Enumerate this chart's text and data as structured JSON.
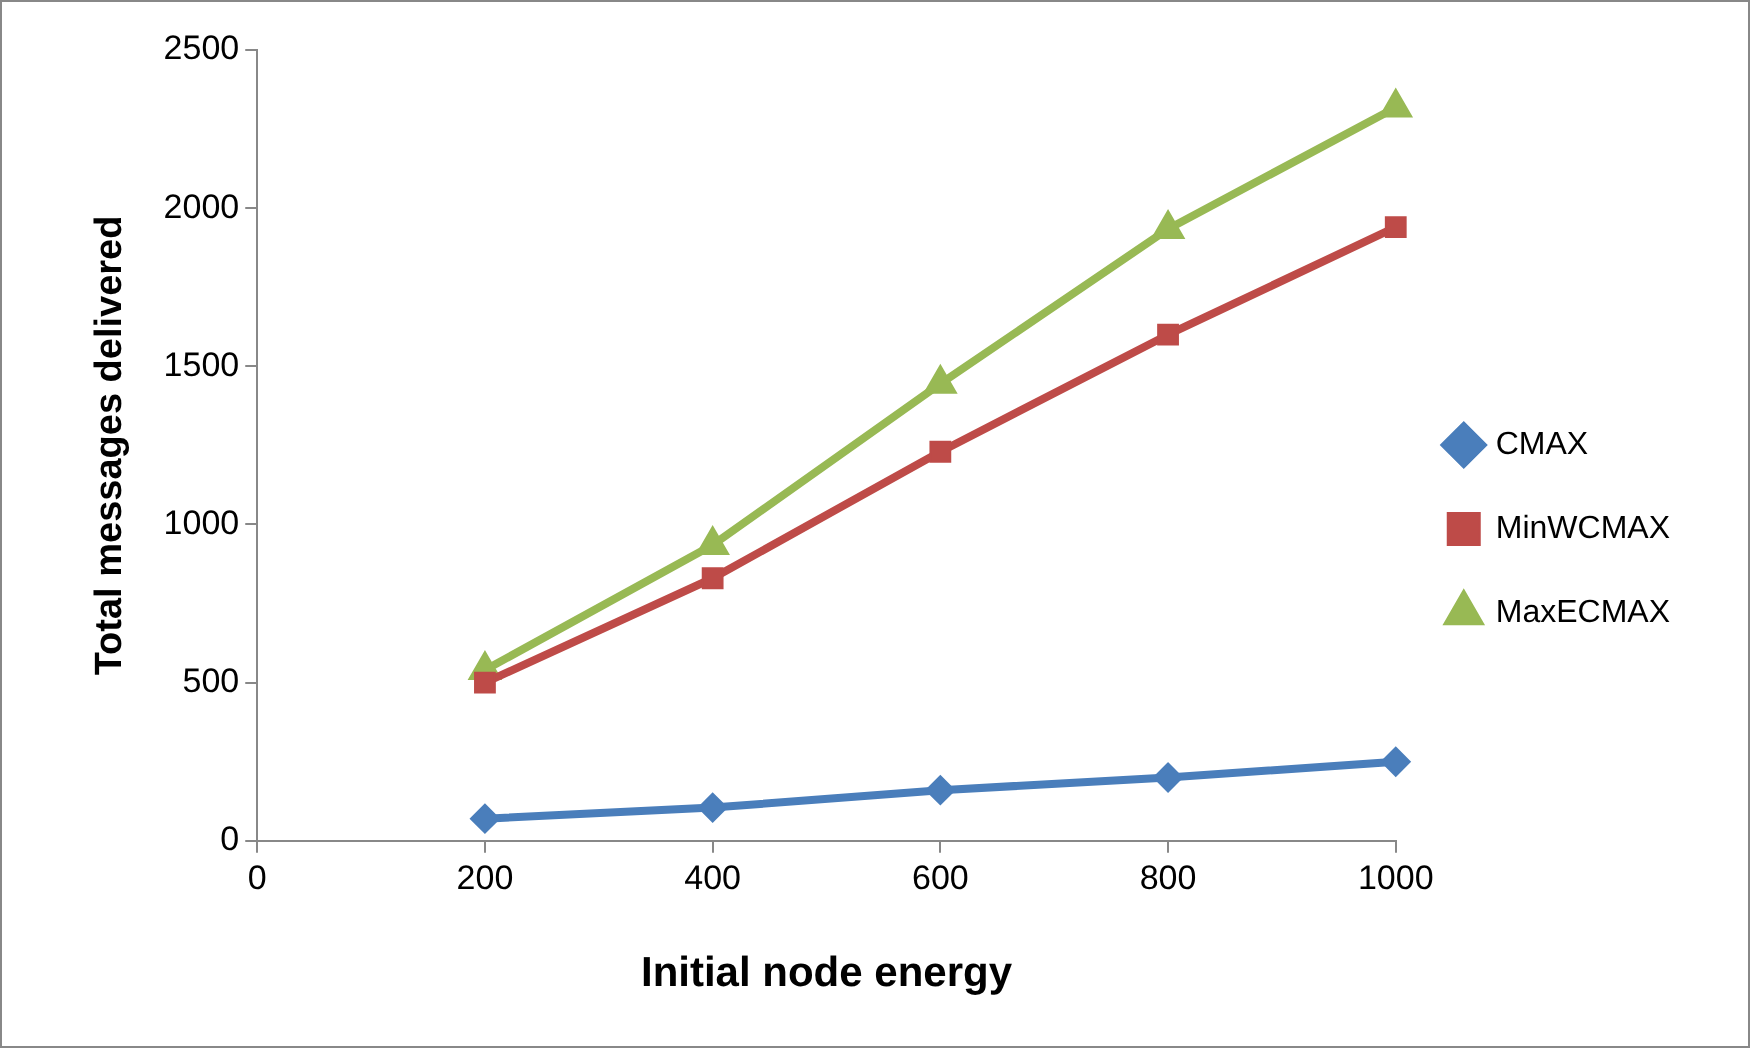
{
  "chart_data": {
    "type": "line",
    "xlabel": "Initial node energy",
    "ylabel": "Total messages delivered",
    "x": [
      200,
      400,
      600,
      800,
      1000
    ],
    "series": [
      {
        "name": "CMAX",
        "color": "#4a7ebb",
        "marker": "diamond",
        "values": [
          70,
          105,
          160,
          200,
          250
        ]
      },
      {
        "name": "MinWCMAX",
        "color": "#be4b48",
        "marker": "square",
        "values": [
          500,
          830,
          1230,
          1600,
          1940
        ]
      },
      {
        "name": "MaxECMAX",
        "color": "#98b954",
        "marker": "triangle",
        "values": [
          540,
          935,
          1445,
          1934,
          2318
        ]
      }
    ],
    "xlim": [
      0,
      1000
    ],
    "xticks": [
      0,
      200,
      400,
      600,
      800,
      1000
    ],
    "ylim": [
      0,
      2500
    ],
    "yticks": [
      0,
      500,
      1000,
      1500,
      2000,
      2500
    ],
    "grid": false,
    "legend": "right",
    "line_style": "solid"
  }
}
